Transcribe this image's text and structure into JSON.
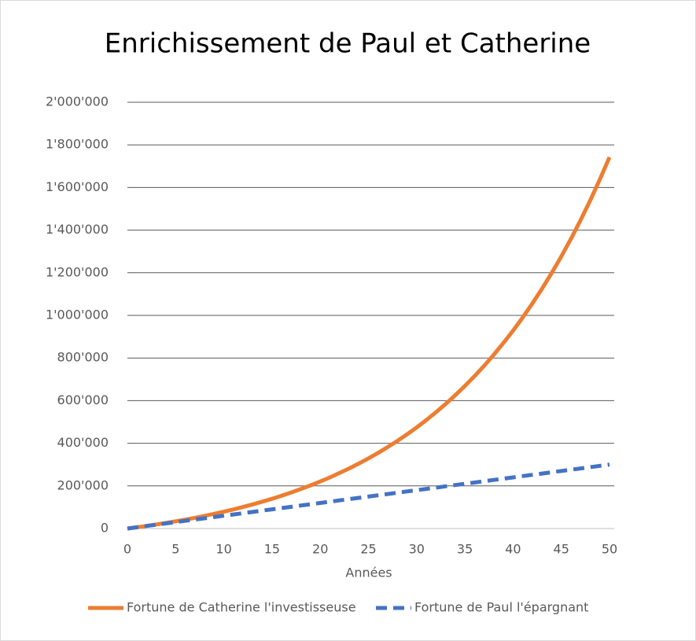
{
  "chart_data": {
    "type": "line",
    "title": "Enrichissement de Paul et Catherine",
    "xlabel": "Années",
    "x": [
      0,
      1,
      2,
      3,
      4,
      5,
      6,
      7,
      8,
      9,
      10,
      11,
      12,
      13,
      14,
      15,
      16,
      17,
      18,
      19,
      20,
      21,
      22,
      23,
      24,
      25,
      26,
      27,
      28,
      29,
      30,
      31,
      32,
      33,
      34,
      35,
      36,
      37,
      38,
      39,
      40,
      41,
      42,
      43,
      44,
      45,
      46,
      47,
      48,
      49,
      50
    ],
    "series": [
      {
        "name": "Fortune de Catherine l'investisseuse",
        "color": "#ed7d31",
        "dash": false,
        "values": [
          0,
          6000,
          12360,
          19102,
          26248,
          33823,
          41852,
          50363,
          59385,
          68948,
          79085,
          89830,
          101220,
          113293,
          126090,
          139656,
          154035,
          169277,
          185434,
          202560,
          220714,
          239956,
          260354,
          281975,
          304893,
          329187,
          354938,
          382235,
          411169,
          441839,
          474349,
          508810,
          545339,
          584059,
          625103,
          668609,
          714725,
          763609,
          815425,
          870351,
          928572,
          990286,
          1055703,
          1125046,
          1198548,
          1276461,
          1359049,
          1446592,
          1539387,
          1637750,
          1742015
        ]
      },
      {
        "name": "Fortune de Paul l'épargnant",
        "color": "#4472c4",
        "dash": true,
        "values": [
          0,
          6000,
          12000,
          18000,
          24000,
          30000,
          36000,
          42000,
          48000,
          54000,
          60000,
          66000,
          72000,
          78000,
          84000,
          90000,
          96000,
          102000,
          108000,
          114000,
          120000,
          126000,
          132000,
          138000,
          144000,
          150000,
          156000,
          162000,
          168000,
          174000,
          180000,
          186000,
          192000,
          198000,
          204000,
          210000,
          216000,
          222000,
          228000,
          234000,
          240000,
          246000,
          252000,
          258000,
          264000,
          270000,
          276000,
          282000,
          288000,
          294000,
          300000
        ]
      }
    ],
    "xlim": [
      0,
      50
    ],
    "xticks": [
      0,
      5,
      10,
      15,
      20,
      25,
      30,
      35,
      40,
      45,
      50
    ],
    "ylim": [
      0,
      2000000
    ],
    "yticks": [
      0,
      {
        "value": 200000,
        "label": "200'000"
      },
      {
        "value": 400000,
        "label": "400'000"
      },
      {
        "value": 600000,
        "label": "600'000"
      },
      {
        "value": 800000,
        "label": "800'000"
      },
      {
        "value": 1000000,
        "label": "1'000'000"
      },
      {
        "value": 1200000,
        "label": "1'200'000"
      },
      {
        "value": 1400000,
        "label": "1'400'000"
      },
      {
        "value": 1600000,
        "label": "1'600'000"
      },
      {
        "value": 1800000,
        "label": "1'800'000"
      },
      {
        "value": 2000000,
        "label": "2'000'000"
      }
    ],
    "grid": true,
    "legend": "bottom"
  }
}
